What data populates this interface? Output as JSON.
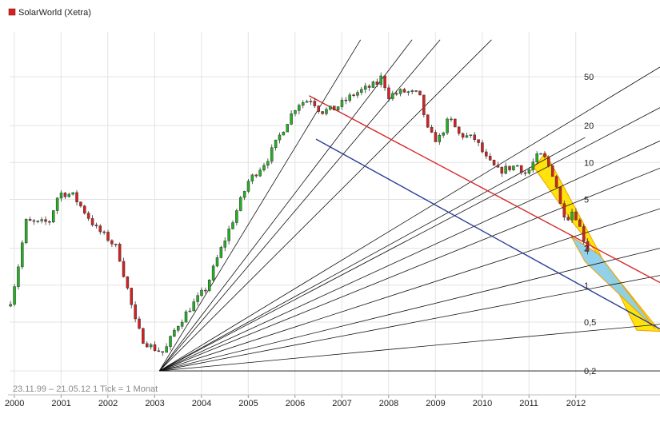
{
  "chart_data": {
    "type": "candlestick",
    "title": "SolarWorld (Xetra)",
    "legend": {
      "placement": "top-left",
      "color": "#d62020"
    },
    "note": "23.11.99 – 21.05.12   1 Tick = 1 Monat",
    "y_scale": "log",
    "ylim": [
      0.16,
      100
    ],
    "y_ticks": [
      {
        "value": 0.2,
        "label": "0,2"
      },
      {
        "value": 0.5,
        "label": "0,5"
      },
      {
        "value": 1,
        "label": "1"
      },
      {
        "value": 2,
        "label": "2"
      },
      {
        "value": 5,
        "label": "5"
      },
      {
        "value": 10,
        "label": "10"
      },
      {
        "value": 20,
        "label": "20"
      },
      {
        "value": 50,
        "label": "50"
      }
    ],
    "x_ticks": [
      "2000",
      "2001",
      "2002",
      "2003",
      "2004",
      "2005",
      "2006",
      "2007",
      "2008",
      "2009",
      "2010",
      "2011",
      "2012"
    ],
    "x_range": [
      1999.9,
      2013.8
    ],
    "up_color": "#22b022",
    "down_color": "#d62020",
    "grid": true,
    "price_anchors": [
      [
        1999.92,
        0.75
      ],
      [
        2000.05,
        1.2
      ],
      [
        2000.25,
        3.3
      ],
      [
        2000.5,
        3.2
      ],
      [
        2000.75,
        3.3
      ],
      [
        2000.95,
        5.6
      ],
      [
        2001.1,
        5.6
      ],
      [
        2001.25,
        5.4
      ],
      [
        2001.5,
        4.0
      ],
      [
        2001.75,
        2.9
      ],
      [
        2002.0,
        2.4
      ],
      [
        2002.2,
        2.0
      ],
      [
        2002.4,
        1.0
      ],
      [
        2002.6,
        0.48
      ],
      [
        2002.75,
        0.36
      ],
      [
        2002.95,
        0.31
      ],
      [
        2003.2,
        0.28
      ],
      [
        2003.45,
        0.45
      ],
      [
        2003.75,
        0.65
      ],
      [
        2004.1,
        0.95
      ],
      [
        2004.35,
        1.7
      ],
      [
        2004.7,
        3.6
      ],
      [
        2005.0,
        7.0
      ],
      [
        2005.4,
        10.5
      ],
      [
        2005.8,
        20.5
      ],
      [
        2006.05,
        30.0
      ],
      [
        2006.35,
        33.0
      ],
      [
        2006.55,
        26.0
      ],
      [
        2006.85,
        27.5
      ],
      [
        2007.25,
        36.0
      ],
      [
        2007.75,
        44.0
      ],
      [
        2007.85,
        50.0
      ],
      [
        2008.0,
        35.0
      ],
      [
        2008.3,
        38.0
      ],
      [
        2008.65,
        36.0
      ],
      [
        2008.85,
        17.5
      ],
      [
        2009.05,
        15.0
      ],
      [
        2009.3,
        23.0
      ],
      [
        2009.5,
        17.0
      ],
      [
        2009.85,
        15.5
      ],
      [
        2010.1,
        10.5
      ],
      [
        2010.35,
        8.5
      ],
      [
        2010.75,
        9.5
      ],
      [
        2010.95,
        8.0
      ],
      [
        2011.15,
        11.0
      ],
      [
        2011.3,
        11.5
      ],
      [
        2011.55,
        7.5
      ],
      [
        2011.7,
        4.0
      ],
      [
        2011.85,
        3.6
      ],
      [
        2011.95,
        4.2
      ],
      [
        2012.15,
        2.5
      ],
      [
        2012.3,
        1.75
      ]
    ],
    "gann_fan": {
      "origin": {
        "x": 2003.1,
        "y": 0.2
      },
      "through_points": [
        [
          2007.4,
          100
        ],
        [
          2008.5,
          100
        ],
        [
          2009.1,
          100
        ],
        [
          2010.2,
          100
        ],
        [
          2013.8,
          60
        ],
        [
          2012.2,
          16
        ],
        [
          2013.8,
          28
        ],
        [
          2013.8,
          15
        ],
        [
          2013.8,
          9
        ],
        [
          2013.8,
          4.2
        ],
        [
          2013.8,
          2.0
        ],
        [
          2013.8,
          1.2
        ],
        [
          2013.8,
          0.48
        ],
        [
          2013.8,
          0.2
        ]
      ]
    },
    "trendlines": [
      {
        "name": "resistance",
        "color": "#d42828",
        "from": [
          2006.3,
          35.0
        ],
        "to": [
          2013.8,
          1.05
        ]
      },
      {
        "name": "support",
        "color": "#2a3f96",
        "from": [
          2006.45,
          15.5
        ],
        "to": [
          2013.8,
          0.44
        ]
      }
    ],
    "channels": [
      {
        "name": "yellow-channel",
        "color": "#ffe100",
        "polygon": [
          [
            2011.05,
            8.5
          ],
          [
            2011.35,
            12.0
          ],
          [
            2012.5,
            1.85
          ],
          [
            2013.3,
            0.43
          ],
          [
            2013.8,
            0.42
          ],
          [
            2012.55,
            1.65
          ],
          [
            2011.95,
            3.2
          ],
          [
            2011.1,
            9.2
          ]
        ]
      },
      {
        "name": "blue-wedge",
        "color": "#8ccfe8",
        "polygon": [
          [
            2011.9,
            2.5
          ],
          [
            2012.5,
            1.78
          ],
          [
            2013.7,
            0.44
          ],
          [
            2012.2,
            1.55
          ]
        ]
      }
    ]
  }
}
